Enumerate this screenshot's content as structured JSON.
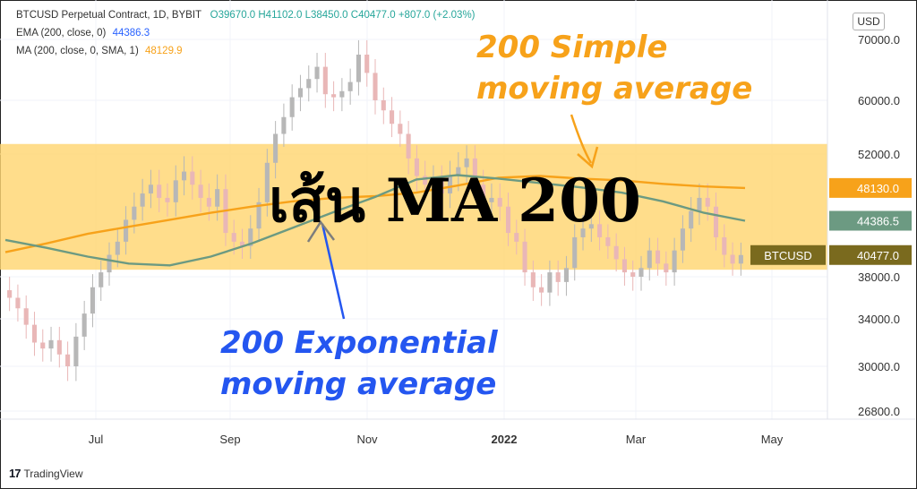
{
  "legend": {
    "title": "BTCUSD Perpetual Contract, 1D, BYBIT",
    "ohlc": "O39670.0  H41102.0  L38450.0  C40477.0  +807.0 (+2.03%)",
    "ema_label": "EMA (200, close, 0)",
    "ema_value": "44386.3",
    "ma_label": "MA (200, close, 0, SMA, 1)",
    "ma_value": "48129.9"
  },
  "currency": "USD",
  "annotations": {
    "sma_line1": "200 Simple",
    "sma_line2": "moving average",
    "ema_line1": "200 Exponential",
    "ema_line2": "moving average",
    "title": "เส้น MA 200"
  },
  "brand": "TradingView",
  "colors": {
    "sma": "#f7a21a",
    "ema": "#6c9a82",
    "band": "#ffd672",
    "candle_up": "#b7b7b7",
    "candle_down": "#e9b7b7",
    "ema_note": "#2456f0",
    "sma_note": "#f7a21a",
    "price_label": "#7a6a1e"
  },
  "chart_data": {
    "type": "candlestick",
    "x_ticks": [
      "Jul",
      "Sep",
      "Nov",
      "2022",
      "Mar",
      "May"
    ],
    "y_ticks": [
      70000.0,
      60000.0,
      52000.0,
      38000.0,
      34000.0,
      30000.0,
      26800.0
    ],
    "y_tick_labels": [
      "70000.0",
      "60000.0",
      "52000.0",
      "38000.0",
      "34000.0",
      "30000.0",
      "26800.0"
    ],
    "ylim": [
      24500,
      76000
    ],
    "price_labels": [
      {
        "name": "sma",
        "text": "48130.0",
        "value": 48130
      },
      {
        "name": "ema",
        "text": "44386.5",
        "value": 44386.5
      },
      {
        "name": "last",
        "tag": "BTCUSD",
        "text": "40477.0",
        "value": 40477
      }
    ],
    "highlight_band": [
      38800,
      53500
    ],
    "series": [
      {
        "name": "MA (200, close, 0, SMA, 1)",
        "values": [
          40800,
          41800,
          42900,
          43700,
          44500,
          45300,
          46000,
          46600,
          47000,
          47200,
          47600,
          48400,
          49300,
          49500,
          49200,
          49000,
          48600,
          48300,
          48130
        ]
      },
      {
        "name": "EMA (200, close, 0)",
        "values": [
          42200,
          41300,
          40300,
          39500,
          39300,
          40300,
          41800,
          43600,
          45400,
          47100,
          49100,
          49600,
          49200,
          48700,
          48200,
          47600,
          46600,
          45300,
          44386
        ]
      },
      {
        "name": "BTCUSD",
        "closes": [
          36000,
          35000,
          33500,
          32000,
          31500,
          32200,
          31000,
          30000,
          32500,
          34500,
          37000,
          38500,
          40500,
          42000,
          44500,
          46000,
          47500,
          48500,
          47000,
          46500,
          49000,
          50000,
          48500,
          47000,
          46000,
          48000,
          43000,
          42000,
          41500,
          43500,
          46500,
          51000,
          55000,
          57500,
          60500,
          62000,
          63500,
          65500,
          61000,
          60500,
          61500,
          63000,
          67500,
          64500,
          60000,
          58500,
          56500,
          55000,
          51500,
          49500,
          48500,
          49000,
          47500,
          49500,
          50500,
          51500,
          48500,
          46500,
          47000,
          46000,
          43000,
          42000,
          38500,
          37000,
          36500,
          38500,
          37500,
          39000,
          42500,
          43500,
          44000,
          42500,
          41500,
          40000,
          38500,
          38000,
          39000,
          41000,
          39500,
          38500,
          41000,
          43500,
          45500,
          47000,
          46000,
          42500,
          40500,
          39500,
          40477
        ]
      }
    ]
  }
}
